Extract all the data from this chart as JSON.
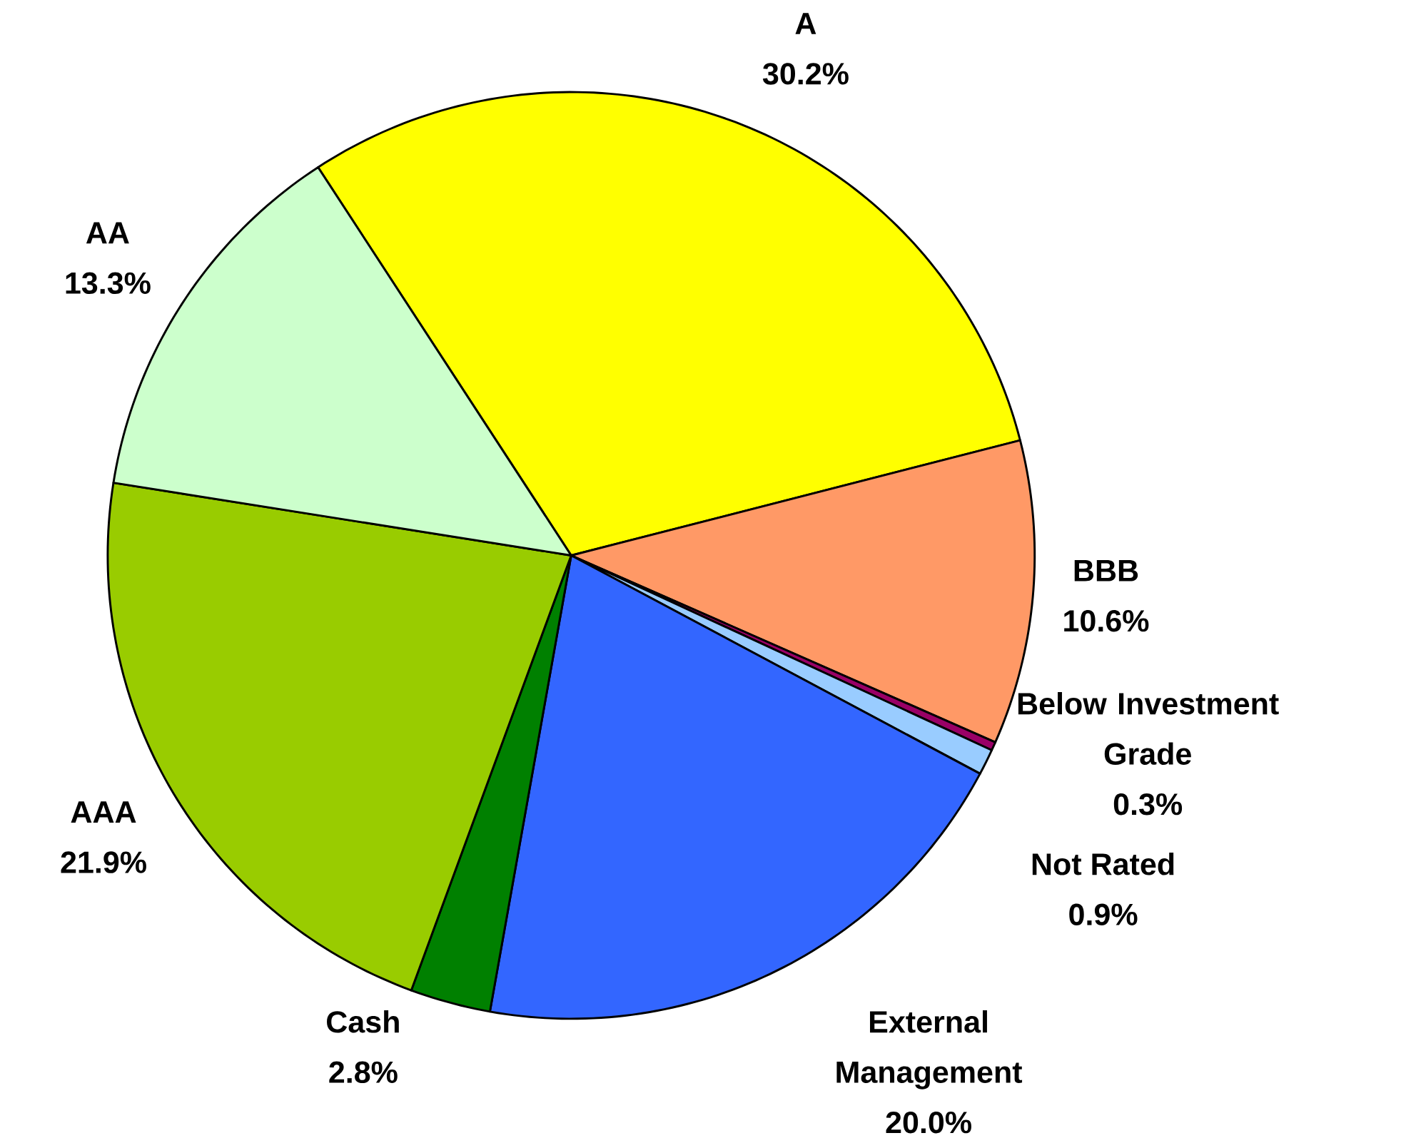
{
  "chart_data": {
    "type": "pie",
    "categories": [
      "A",
      "BBB",
      "Below Investment Grade",
      "Not Rated",
      "External Management",
      "Cash",
      "AAA",
      "AA"
    ],
    "values": [
      30.2,
      10.6,
      0.3,
      0.9,
      20.0,
      2.8,
      21.9,
      13.3
    ],
    "value_labels": [
      "30.2%",
      "10.6%",
      "0.3%",
      "0.9%",
      "20.0%",
      "2.8%",
      "21.9%",
      "13.3%"
    ],
    "colors": [
      "#ffff00",
      "#ff9966",
      "#990066",
      "#99ccff",
      "#3366ff",
      "#008000",
      "#99cc00",
      "#ccffcc"
    ]
  }
}
